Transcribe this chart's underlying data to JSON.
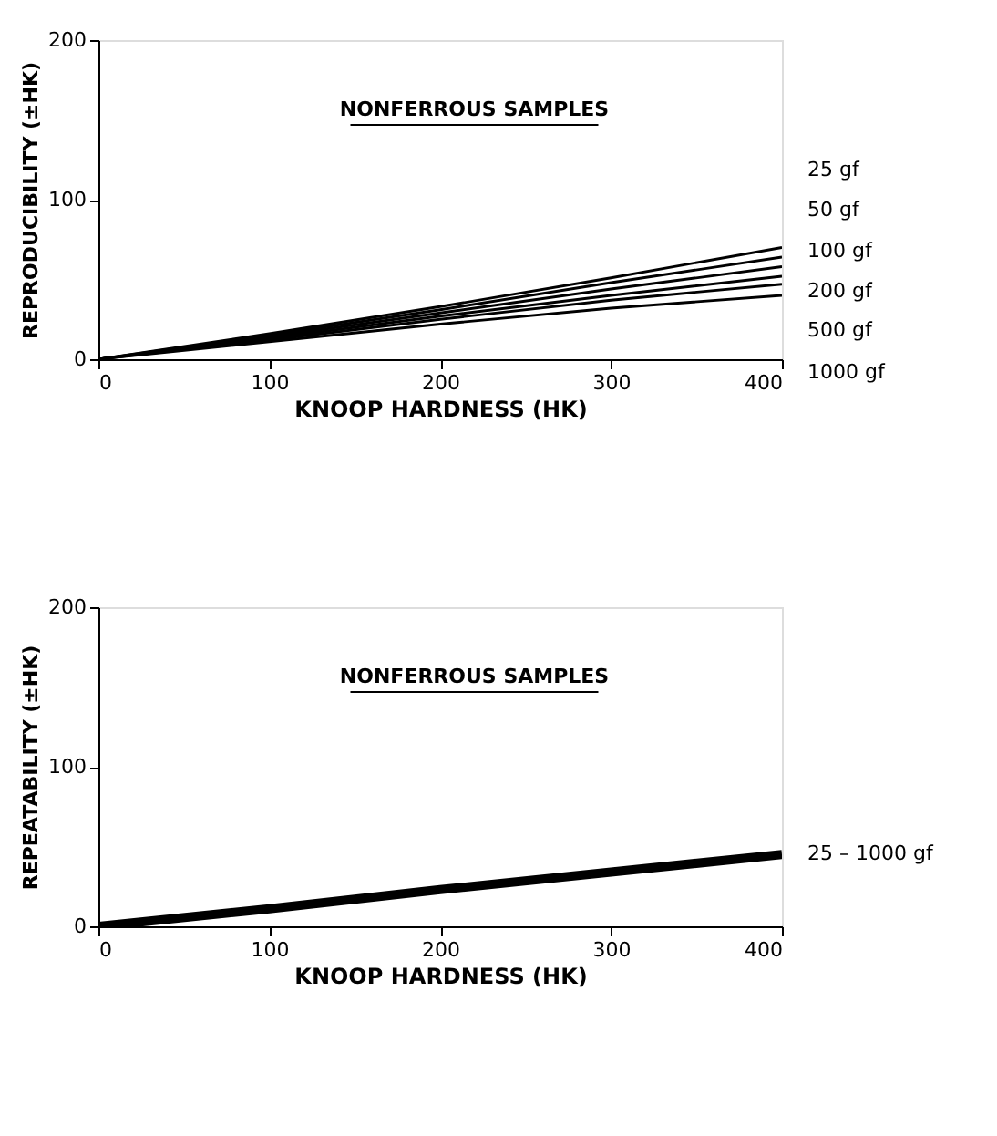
{
  "chart_data": [
    {
      "type": "line",
      "title": "NONFERROUS SAMPLES",
      "xlabel": "KNOOP HARDNESS (HK)",
      "ylabel": "REPRODUCIBILITY (±HK)",
      "x": [
        0,
        100,
        200,
        300,
        400
      ],
      "xlim": [
        0,
        400
      ],
      "xticks": [
        0,
        100,
        200,
        300,
        400
      ],
      "ylim": [
        0,
        200
      ],
      "yticks": [
        0,
        100,
        200
      ],
      "grid": false,
      "legend": false,
      "series": [
        {
          "name": "25 gf",
          "color": "#000000",
          "values": [
            0,
            16,
            33,
            51,
            70
          ]
        },
        {
          "name": "50 gf",
          "color": "#000000",
          "values": [
            0,
            15,
            31,
            48,
            64
          ]
        },
        {
          "name": "100 gf",
          "color": "#000000",
          "values": [
            0,
            14,
            29,
            44,
            58
          ]
        },
        {
          "name": "200 gf",
          "color": "#000000",
          "values": [
            0,
            13,
            27,
            40,
            52
          ]
        },
        {
          "name": "500 gf",
          "color": "#000000",
          "values": [
            0,
            12,
            25,
            37,
            47
          ]
        },
        {
          "name": "1000 gf",
          "color": "#000000",
          "values": [
            0,
            11,
            22,
            32,
            40
          ]
        }
      ]
    },
    {
      "type": "line",
      "title": "NONFERROUS SAMPLES",
      "xlabel": "KNOOP HARDNESS (HK)",
      "ylabel": "REPEATABILITY (±HK)",
      "x": [
        0,
        100,
        200,
        300,
        400
      ],
      "xlim": [
        0,
        400
      ],
      "xticks": [
        0,
        100,
        200,
        300,
        400
      ],
      "ylim": [
        0,
        200
      ],
      "yticks": [
        0,
        100,
        200
      ],
      "grid": false,
      "legend": false,
      "series": [
        {
          "name": "25 – 1000 gf",
          "color": "#000000",
          "values": [
            0,
            11,
            23,
            34,
            45
          ]
        }
      ]
    }
  ]
}
